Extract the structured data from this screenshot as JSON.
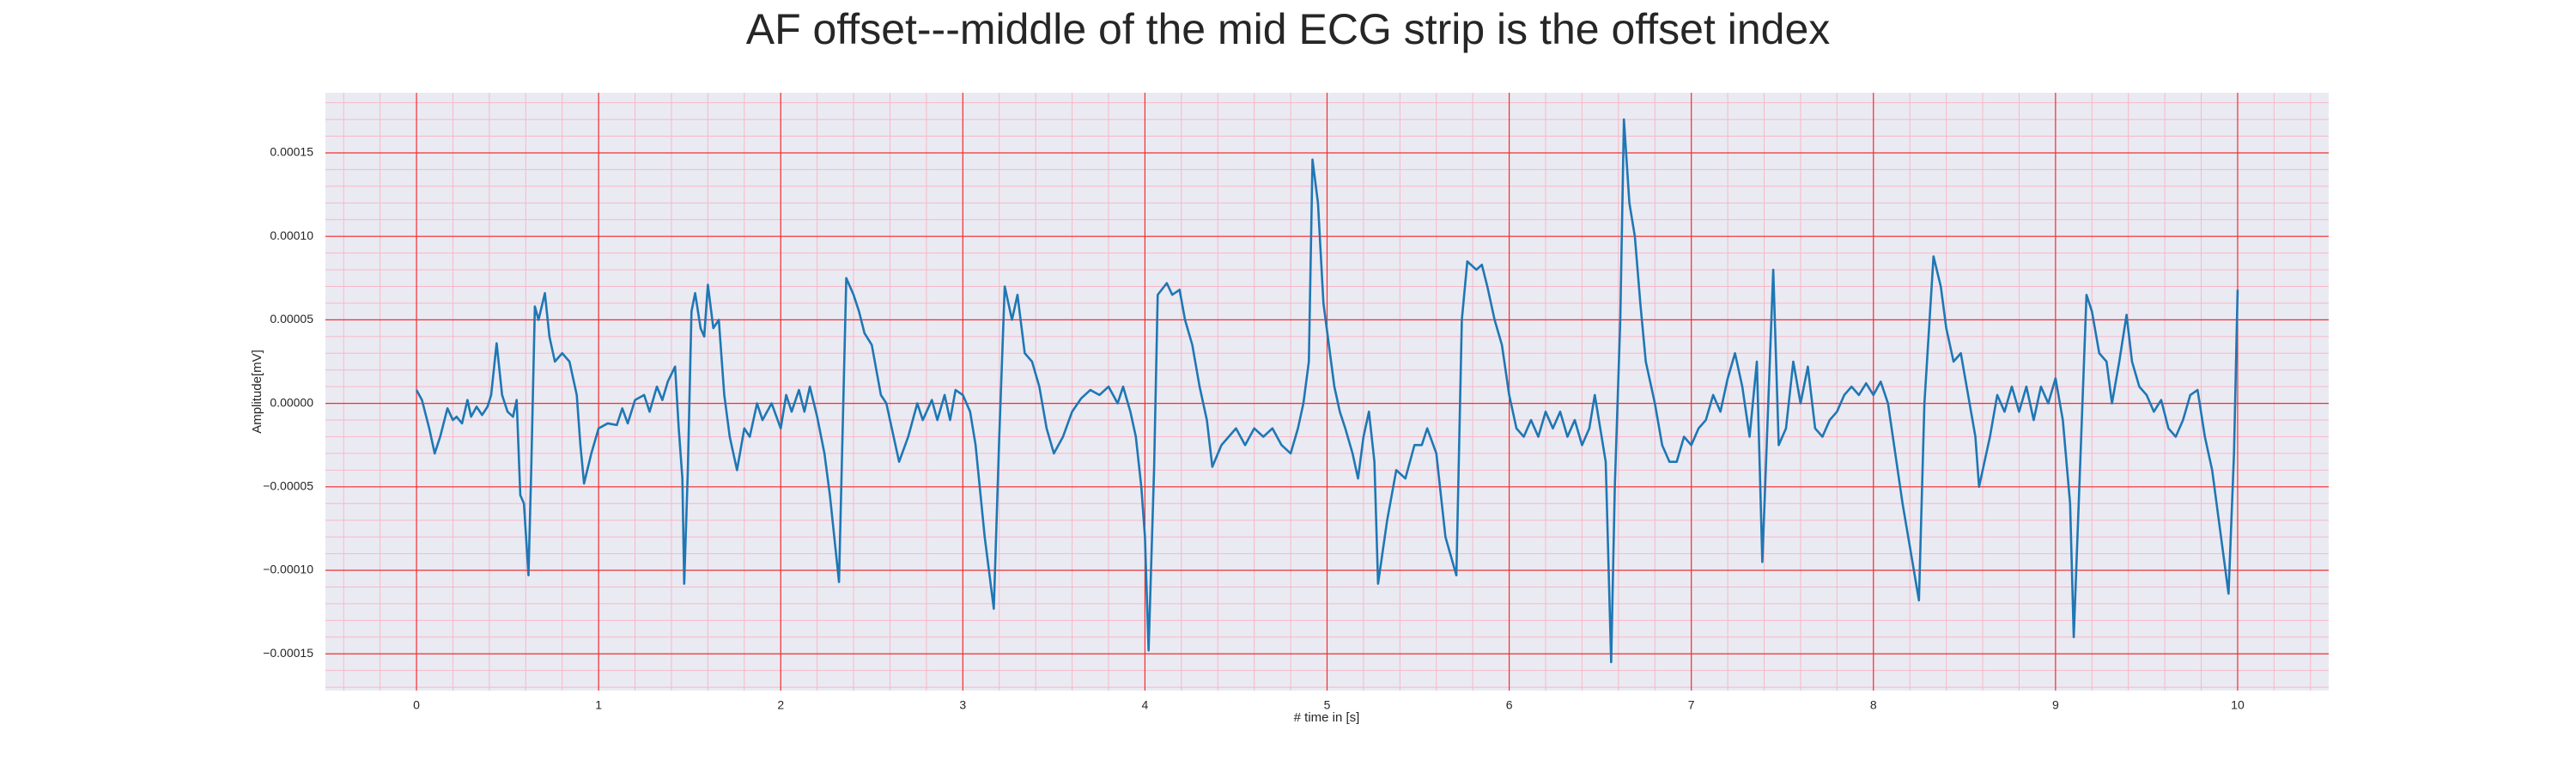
{
  "chart_data": {
    "type": "line",
    "title": "AF offset---middle of the mid ECG strip is the offset index",
    "xlabel": "# time in [s]",
    "ylabel": "Amplitude[mV]",
    "color": "#1f77b4",
    "grid": true,
    "minor_grid": true,
    "xlim": [
      -0.5,
      10.5
    ],
    "xticks": [
      0,
      1,
      2,
      3,
      4,
      5,
      6,
      7,
      8,
      9,
      10
    ],
    "ylim": [
      -0.000172,
      0.000186
    ],
    "yticks": [
      {
        "value": -0.00015,
        "label": "−0.00015"
      },
      {
        "value": -0.0001,
        "label": "−0.00010"
      },
      {
        "value": -5e-05,
        "label": "−0.00005"
      },
      {
        "value": 0,
        "label": "0.00000"
      },
      {
        "value": 5e-05,
        "label": "0.00005"
      },
      {
        "value": 0.0001,
        "label": "0.00010"
      },
      {
        "value": 0.00015,
        "label": "0.00015"
      }
    ],
    "x": [
      0,
      0.03,
      0.07,
      0.1,
      0.13,
      0.17,
      0.2,
      0.22,
      0.25,
      0.28,
      0.3,
      0.33,
      0.36,
      0.39,
      0.41,
      0.44,
      0.47,
      0.5,
      0.53,
      0.55,
      0.57,
      0.59,
      0.615,
      0.63,
      0.65,
      0.67,
      0.705,
      0.73,
      0.76,
      0.8,
      0.84,
      0.88,
      0.9,
      0.92,
      0.96,
      1.0,
      1.05,
      1.1,
      1.13,
      1.16,
      1.2,
      1.25,
      1.28,
      1.32,
      1.35,
      1.38,
      1.42,
      1.44,
      1.46,
      1.47,
      1.49,
      1.51,
      1.53,
      1.56,
      1.58,
      1.6,
      1.63,
      1.66,
      1.69,
      1.72,
      1.76,
      1.8,
      1.83,
      1.87,
      1.9,
      1.95,
      2.0,
      2.03,
      2.06,
      2.1,
      2.13,
      2.16,
      2.2,
      2.24,
      2.27,
      2.32,
      2.36,
      2.4,
      2.43,
      2.46,
      2.5,
      2.55,
      2.58,
      2.62,
      2.65,
      2.7,
      2.75,
      2.78,
      2.83,
      2.86,
      2.9,
      2.93,
      2.96,
      3.0,
      3.04,
      3.07,
      3.12,
      3.17,
      3.2,
      3.23,
      3.27,
      3.3,
      3.34,
      3.38,
      3.42,
      3.46,
      3.5,
      3.55,
      3.6,
      3.65,
      3.7,
      3.75,
      3.8,
      3.85,
      3.88,
      3.92,
      3.95,
      3.98,
      4.0,
      4.02,
      4.05,
      4.07,
      4.12,
      4.15,
      4.19,
      4.22,
      4.26,
      4.3,
      4.34,
      4.37,
      4.42,
      4.46,
      4.5,
      4.55,
      4.6,
      4.65,
      4.7,
      4.75,
      4.8,
      4.84,
      4.87,
      4.9,
      4.92,
      4.95,
      4.98,
      5.01,
      5.04,
      5.07,
      5.1,
      5.14,
      5.17,
      5.2,
      5.23,
      5.26,
      5.28,
      5.33,
      5.38,
      5.43,
      5.48,
      5.52,
      5.55,
      5.6,
      5.65,
      5.71,
      5.74,
      5.77,
      5.82,
      5.85,
      5.88,
      5.92,
      5.96,
      6.0,
      6.04,
      6.08,
      6.12,
      6.16,
      6.2,
      6.24,
      6.28,
      6.32,
      6.36,
      6.4,
      6.44,
      6.47,
      6.5,
      6.53,
      6.56,
      6.58,
      6.61,
      6.63,
      6.66,
      6.69,
      6.72,
      6.75,
      6.8,
      6.84,
      6.88,
      6.92,
      6.96,
      7.0,
      7.04,
      7.08,
      7.12,
      7.16,
      7.2,
      7.24,
      7.28,
      7.32,
      7.36,
      7.39,
      7.45,
      7.48,
      7.52,
      7.56,
      7.6,
      7.64,
      7.68,
      7.72,
      7.76,
      7.8,
      7.84,
      7.88,
      7.92,
      7.96,
      8.0,
      8.04,
      8.08,
      8.12,
      8.16,
      8.25,
      8.28,
      8.33,
      8.37,
      8.4,
      8.44,
      8.48,
      8.52,
      8.56,
      8.58,
      8.64,
      8.68,
      8.72,
      8.76,
      8.8,
      8.84,
      8.88,
      8.92,
      8.96,
      9.0,
      9.04,
      9.08,
      9.1,
      9.17,
      9.2,
      9.24,
      9.28,
      9.31,
      9.35,
      9.39,
      9.42,
      9.46,
      9.5,
      9.54,
      9.58,
      9.62,
      9.66,
      9.7,
      9.74,
      9.78,
      9.82,
      9.86,
      9.95,
      9.98,
      10.0
    ],
    "values": [
      8e-06,
      2e-06,
      -1.5e-05,
      -3e-05,
      -2e-05,
      -3e-06,
      -1e-05,
      -8e-06,
      -1.2e-05,
      2e-06,
      -8e-06,
      -2e-06,
      -7e-06,
      -2e-06,
      5e-06,
      3.6e-05,
      5e-06,
      -5e-06,
      -8e-06,
      2e-06,
      -5.5e-05,
      -6e-05,
      -0.000103,
      -4e-05,
      5.8e-05,
      5e-05,
      6.6e-05,
      4e-05,
      2.5e-05,
      3e-05,
      2.5e-05,
      5e-06,
      -2.5e-05,
      -4.8e-05,
      -3e-05,
      -1.5e-05,
      -1.2e-05,
      -1.3e-05,
      -3e-06,
      -1.2e-05,
      2e-06,
      5e-06,
      -5e-06,
      1e-05,
      2e-06,
      1.3e-05,
      2.2e-05,
      -1.5e-05,
      -4.5e-05,
      -0.000108,
      -4e-05,
      5.5e-05,
      6.6e-05,
      4.5e-05,
      4e-05,
      7.1e-05,
      4.5e-05,
      5e-05,
      5e-06,
      -2e-05,
      -4e-05,
      -1.5e-05,
      -2e-05,
      0.0,
      -1e-05,
      0.0,
      -1.5e-05,
      5e-06,
      -5e-06,
      8e-06,
      -5e-06,
      1e-05,
      -8e-06,
      -3e-05,
      -5.5e-05,
      -0.000107,
      7.5e-05,
      6.5e-05,
      5.5e-05,
      4.2e-05,
      3.5e-05,
      5e-06,
      0.0,
      -2e-05,
      -3.5e-05,
      -2e-05,
      0.0,
      -1e-05,
      2e-06,
      -1e-05,
      5e-06,
      -1e-05,
      8e-06,
      5e-06,
      -5e-06,
      -2.5e-05,
      -8e-05,
      -0.000123,
      -2e-05,
      7e-05,
      5e-05,
      6.5e-05,
      3e-05,
      2.5e-05,
      1e-05,
      -1.5e-05,
      -3e-05,
      -2e-05,
      -5e-06,
      3e-06,
      8e-06,
      5e-06,
      1e-05,
      0.0,
      1e-05,
      -5e-06,
      -2e-05,
      -5e-05,
      -8e-05,
      -0.000148,
      -4e-05,
      6.5e-05,
      7.2e-05,
      6.5e-05,
      6.8e-05,
      5e-05,
      3.5e-05,
      1e-05,
      -1e-05,
      -3.8e-05,
      -2.5e-05,
      -2e-05,
      -1.5e-05,
      -2.5e-05,
      -1.5e-05,
      -2e-05,
      -1.5e-05,
      -2.5e-05,
      -3e-05,
      -1.5e-05,
      0.0,
      2.5e-05,
      0.000146,
      0.00012,
      6e-05,
      3.5e-05,
      1e-05,
      -5e-06,
      -1.5e-05,
      -3e-05,
      -4.5e-05,
      -2e-05,
      -5e-06,
      -3.5e-05,
      -0.000108,
      -7e-05,
      -4e-05,
      -4.5e-05,
      -2.5e-05,
      -2.5e-05,
      -1.5e-05,
      -3e-05,
      -8e-05,
      -0.000103,
      5e-05,
      8.5e-05,
      8e-05,
      8.3e-05,
      7e-05,
      5e-05,
      3.5e-05,
      5e-06,
      -1.5e-05,
      -2e-05,
      -1e-05,
      -2e-05,
      -5e-06,
      -1.5e-05,
      -5e-06,
      -2e-05,
      -1e-05,
      -2.5e-05,
      -1.5e-05,
      5e-06,
      -1.5e-05,
      -3.5e-05,
      -0.000155,
      -5e-05,
      5e-05,
      0.00017,
      0.00012,
      0.0001,
      6e-05,
      2.5e-05,
      0.0,
      -2.5e-05,
      -3.5e-05,
      -3.5e-05,
      -2e-05,
      -2.5e-05,
      -1.5e-05,
      -1e-05,
      5e-06,
      -5e-06,
      1.5e-05,
      3e-05,
      1e-05,
      -2e-05,
      2.5e-05,
      -9.5e-05,
      8e-05,
      -2.5e-05,
      -1.5e-05,
      2.5e-05,
      0.0,
      2.2e-05,
      -1.5e-05,
      -2e-05,
      -1e-05,
      -5e-06,
      5e-06,
      1e-05,
      5e-06,
      1.2e-05,
      5e-06,
      1.3e-05,
      0.0,
      -3e-05,
      -6e-05,
      -0.000118,
      0.0,
      8.8e-05,
      7e-05,
      4.5e-05,
      2.5e-05,
      3e-05,
      5e-06,
      -2e-05,
      -5e-05,
      -2e-05,
      5e-06,
      -5e-06,
      1e-05,
      -5e-06,
      1e-05,
      -1e-05,
      1e-05,
      0.0,
      1.5e-05,
      -1e-05,
      -6e-05,
      -0.00014,
      6.5e-05,
      5.5e-05,
      3e-05,
      2.5e-05,
      0.0,
      2.5e-05,
      5.3e-05,
      2.5e-05,
      1e-05,
      5e-06,
      -5e-06,
      2e-06,
      -1.5e-05,
      -2e-05,
      -1e-05,
      5e-06,
      8e-06,
      -2e-05,
      -4e-05,
      -0.000114,
      -3e-05,
      6.8e-05
    ]
  }
}
